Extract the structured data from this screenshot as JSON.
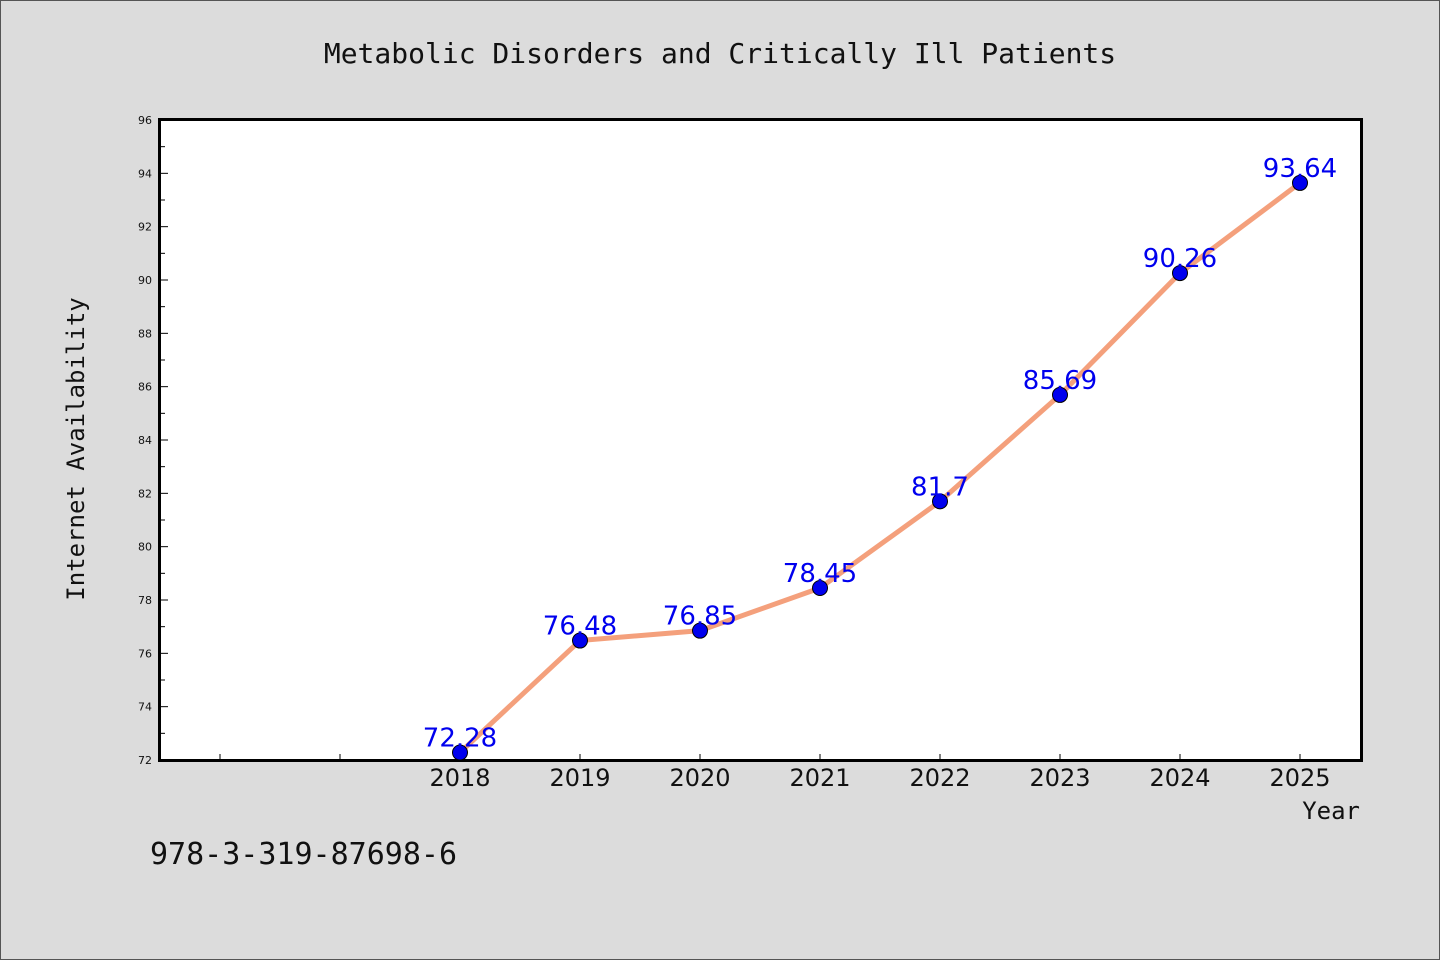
{
  "chart_data": {
    "type": "line",
    "title": "Metabolic Disorders and Critically Ill Patients",
    "xlabel": "Year",
    "ylabel": "Internet Availability",
    "categories": [
      "2018",
      "2019",
      "2020",
      "2021",
      "2022",
      "2023",
      "2024",
      "2025"
    ],
    "series": [
      {
        "values": [
          72.28,
          76.48,
          76.85,
          78.45,
          81.7,
          85.69,
          90.26,
          93.64
        ],
        "data_labels": [
          "72.28",
          "76.48",
          "76.85",
          "78.45",
          "81.7",
          "85.69",
          "90.26",
          "93.64"
        ]
      }
    ],
    "ylim": [
      72,
      96
    ],
    "yticks": [
      "72",
      "74",
      "76",
      "78",
      "80",
      "82",
      "84",
      "86",
      "88",
      "90",
      "92",
      "94",
      "96"
    ],
    "grid": false,
    "line_color": "#f4a07c",
    "marker_color": "#0000ee",
    "label_color": "#0000ee"
  },
  "footnote": "978-3-319-87698-6"
}
